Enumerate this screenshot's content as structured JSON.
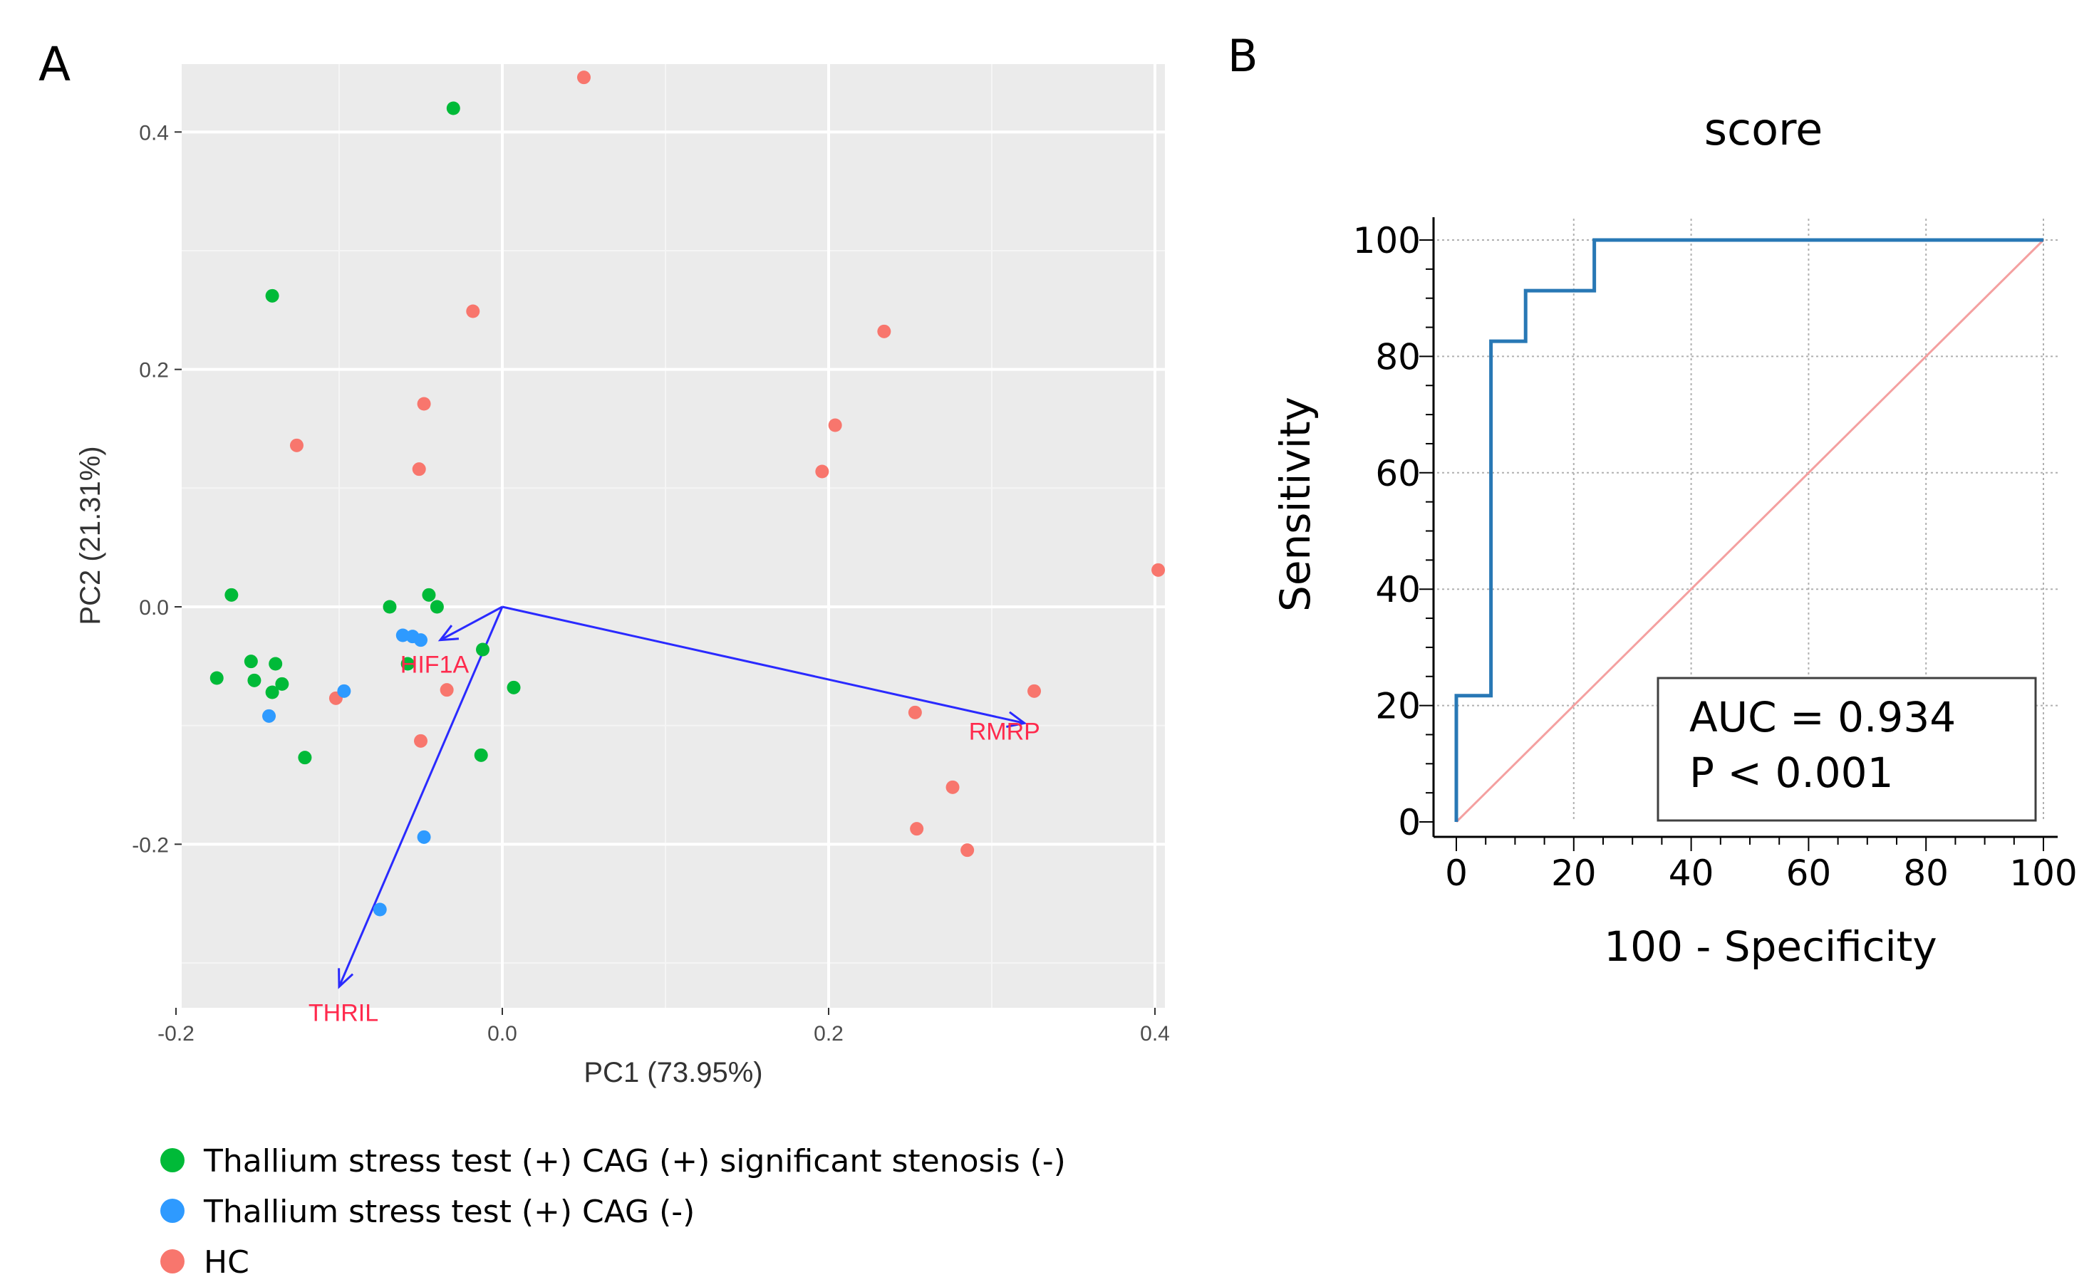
{
  "panel_a_letter": "A",
  "panel_b_letter": "B",
  "chart_data": [
    {
      "type": "scatter",
      "title": "",
      "xlabel": "PC1 (73.95%)",
      "ylabel": "PC2 (21.31%)",
      "xlim": [
        -0.2,
        0.43
      ],
      "ylim": [
        -0.36,
        0.48
      ],
      "xticks": [
        -0.2,
        0.0,
        0.2,
        0.4
      ],
      "xtick_labels": [
        "-0.2",
        "0.0",
        "0.2",
        "0.4"
      ],
      "yticks": [
        -0.2,
        0.0,
        0.2,
        0.4
      ],
      "ytick_labels": [
        "-0.2",
        "0.0",
        "0.2",
        "0.4"
      ],
      "grid": true,
      "legend_position": "bottom-left",
      "series": [
        {
          "name": "Thallium stress test (+) CAG (+) significant stenosis (-)",
          "color": "#00ba38",
          "points": [
            [
              -0.03,
              0.42
            ],
            [
              -0.141,
              0.262
            ],
            [
              -0.166,
              0.01
            ],
            [
              -0.175,
              -0.06
            ],
            [
              -0.154,
              -0.046
            ],
            [
              -0.152,
              -0.062
            ],
            [
              -0.139,
              -0.048
            ],
            [
              -0.141,
              -0.072
            ],
            [
              -0.135,
              -0.065
            ],
            [
              -0.121,
              -0.127
            ],
            [
              -0.069,
              0.0
            ],
            [
              -0.058,
              -0.048
            ],
            [
              -0.045,
              0.01
            ],
            [
              -0.04,
              0.0
            ],
            [
              -0.012,
              -0.036
            ],
            [
              -0.013,
              -0.125
            ],
            [
              0.007,
              -0.068
            ]
          ]
        },
        {
          "name": "Thallium stress test (+) CAG (-)",
          "color": "#2e9aff",
          "points": [
            [
              -0.143,
              -0.092
            ],
            [
              -0.097,
              -0.071
            ],
            [
              -0.061,
              -0.024
            ],
            [
              -0.055,
              -0.025
            ],
            [
              -0.05,
              -0.028
            ],
            [
              -0.048,
              -0.194
            ],
            [
              -0.075,
              -0.255
            ]
          ]
        },
        {
          "name": "HC",
          "color": "#f8766d",
          "points": [
            [
              0.05,
              0.446
            ],
            [
              -0.018,
              0.249
            ],
            [
              -0.126,
              0.136
            ],
            [
              -0.048,
              0.171
            ],
            [
              -0.051,
              0.116
            ],
            [
              -0.102,
              -0.077
            ],
            [
              -0.034,
              -0.07
            ],
            [
              -0.05,
              -0.113
            ],
            [
              0.234,
              0.232
            ],
            [
              0.204,
              0.153
            ],
            [
              0.196,
              0.114
            ],
            [
              0.402,
              0.031
            ],
            [
              0.326,
              -0.071
            ],
            [
              0.253,
              -0.089
            ],
            [
              0.276,
              -0.152
            ],
            [
              0.254,
              -0.187
            ],
            [
              0.285,
              -0.205
            ]
          ]
        }
      ],
      "loadings": [
        {
          "name": "HIF1A",
          "x": -0.038,
          "y": -0.028
        },
        {
          "name": "RMRP",
          "x": 0.32,
          "y": -0.098
        },
        {
          "name": "THRIL",
          "x": -0.1,
          "y": -0.32
        }
      ],
      "loading_color": "#2a2aff",
      "label_color": "#ff2a4d"
    },
    {
      "type": "line",
      "title": "score",
      "xlabel": "100 - Specificity",
      "ylabel": "Sensitivity",
      "xlim": [
        0,
        100
      ],
      "ylim": [
        0,
        100
      ],
      "xticks": [
        0,
        20,
        40,
        60,
        80,
        100
      ],
      "xtick_labels": [
        "0",
        "20",
        "40",
        "60",
        "80",
        "100"
      ],
      "yticks": [
        0,
        20,
        40,
        60,
        80,
        100
      ],
      "ytick_labels": [
        "0",
        "20",
        "40",
        "60",
        "80",
        "100"
      ],
      "grid": true,
      "series": [
        {
          "name": "ROC curve",
          "color": "#2878b5",
          "x": [
            0,
            0,
            5.9,
            5.9,
            11.8,
            11.8,
            23.5,
            23.5,
            100
          ],
          "y": [
            0,
            21.7,
            21.7,
            82.6,
            82.6,
            91.3,
            91.3,
            100,
            100
          ]
        },
        {
          "name": "Reference line",
          "color": "#f4a0a0",
          "x": [
            0,
            100
          ],
          "y": [
            0,
            100
          ]
        }
      ],
      "annotations": [
        "AUC = 0.934",
        "P < 0.001"
      ]
    }
  ]
}
